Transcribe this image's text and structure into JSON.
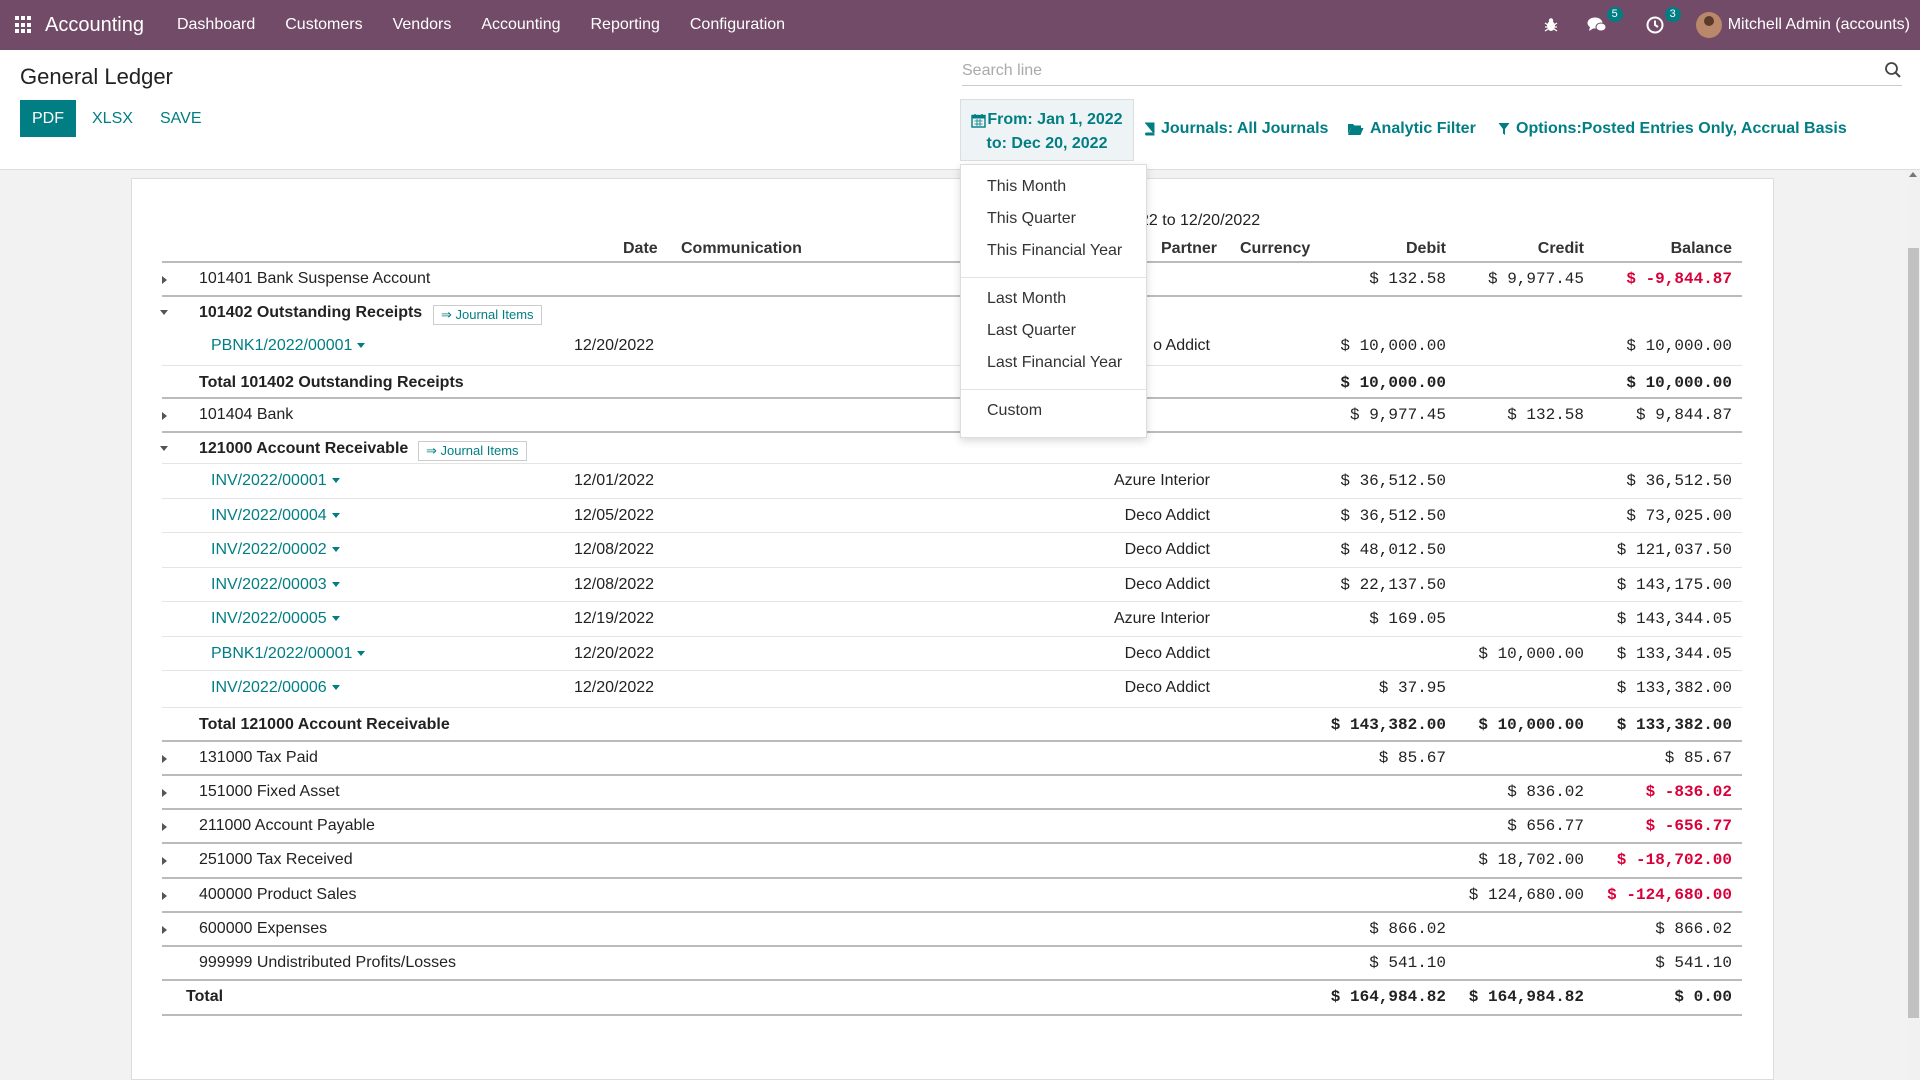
{
  "navbar": {
    "brand": "Accounting",
    "menu": [
      "Dashboard",
      "Customers",
      "Vendors",
      "Accounting",
      "Reporting",
      "Configuration"
    ],
    "messages_count": "5",
    "activities_count": "3",
    "user_name": "Mitchell Admin (accounts)",
    "accent_color": "#714b67"
  },
  "control_panel": {
    "title": "General Ledger",
    "pdf_label": "PDF",
    "xlsx_label": "XLSX",
    "save_label": "SAVE",
    "search_placeholder": "Search line",
    "date_filter_line1": "From: Jan 1, 2022",
    "date_filter_line2": "to: Dec 20, 2022",
    "journals_filter": "Journals: All Journals",
    "analytic_filter": "Analytic Filter",
    "options_filter": "Options:Posted Entries Only, Accrual Basis"
  },
  "date_dropdown": {
    "items": [
      "This Month",
      "This Quarter",
      "This Financial Year",
      "Last Month",
      "Last Quarter",
      "Last Financial Year",
      "Custom"
    ]
  },
  "report": {
    "period": "22 to 12/20/2022",
    "columns": {
      "date": "Date",
      "communication": "Communication",
      "partner": "Partner",
      "currency": "Currency",
      "debit": "Debit",
      "credit": "Credit",
      "balance": "Balance"
    },
    "journal_items_label": "⇒ Journal Items",
    "rows": [
      {
        "label": "101401 Bank Suspense Account",
        "debit": "$ 132.58",
        "credit": "$ 9,977.45",
        "balance": "$ -9,844.87"
      },
      {
        "label": "101402 Outstanding Receipts"
      },
      {
        "label": "PBNK1/2022/00001",
        "date": "12/20/2022",
        "partner": "o Addict",
        "debit": "$ 10,000.00",
        "balance": "$ 10,000.00"
      },
      {
        "label": "Total 101402 Outstanding Receipts",
        "debit": "$ 10,000.00",
        "balance": "$ 10,000.00"
      },
      {
        "label": "101404 Bank",
        "debit": "$ 9,977.45",
        "credit": "$ 132.58",
        "balance": "$ 9,844.87"
      },
      {
        "label": "121000 Account Receivable"
      },
      {
        "label": "INV/2022/00001",
        "date": "12/01/2022",
        "partner": "Azure Interior",
        "debit": "$ 36,512.50",
        "balance": "$ 36,512.50"
      },
      {
        "label": "INV/2022/00004",
        "date": "12/05/2022",
        "partner": "Deco Addict",
        "debit": "$ 36,512.50",
        "balance": "$ 73,025.00"
      },
      {
        "label": "INV/2022/00002",
        "date": "12/08/2022",
        "partner": "Deco Addict",
        "debit": "$ 48,012.50",
        "balance": "$ 121,037.50"
      },
      {
        "label": "INV/2022/00003",
        "date": "12/08/2022",
        "partner": "Deco Addict",
        "debit": "$ 22,137.50",
        "balance": "$ 143,175.00"
      },
      {
        "label": "INV/2022/00005",
        "date": "12/19/2022",
        "partner": "Azure Interior",
        "debit": "$ 169.05",
        "balance": "$ 143,344.05"
      },
      {
        "label": "PBNK1/2022/00001",
        "date": "12/20/2022",
        "partner": "Deco Addict",
        "credit": "$ 10,000.00",
        "balance": "$ 133,344.05"
      },
      {
        "label": "INV/2022/00006",
        "date": "12/20/2022",
        "partner": "Deco Addict",
        "debit": "$ 37.95",
        "balance": "$ 133,382.00"
      },
      {
        "label": "Total 121000 Account Receivable",
        "debit": "$ 143,382.00",
        "credit": "$ 10,000.00",
        "balance": "$ 133,382.00"
      },
      {
        "label": "131000 Tax Paid",
        "debit": "$ 85.67",
        "balance": "$ 85.67"
      },
      {
        "label": "151000 Fixed Asset",
        "credit": "$ 836.02",
        "balance": "$ -836.02"
      },
      {
        "label": "211000 Account Payable",
        "credit": "$ 656.77",
        "balance": "$ -656.77"
      },
      {
        "label": "251000 Tax Received",
        "credit": "$ 18,702.00",
        "balance": "$ -18,702.00"
      },
      {
        "label": "400000 Product Sales",
        "credit": "$ 124,680.00",
        "balance": "$ -124,680.00"
      },
      {
        "label": "600000 Expenses",
        "debit": "$ 866.02",
        "balance": "$ 866.02"
      },
      {
        "label": "999999 Undistributed Profits/Losses",
        "debit": "$ 541.10",
        "balance": "$ 541.10"
      },
      {
        "label": "Total",
        "debit": "$ 164,984.82",
        "credit": "$ 164,984.82",
        "balance": "$ 0.00"
      }
    ],
    "negative_color": "#d9003a",
    "link_color": "#017e84"
  }
}
